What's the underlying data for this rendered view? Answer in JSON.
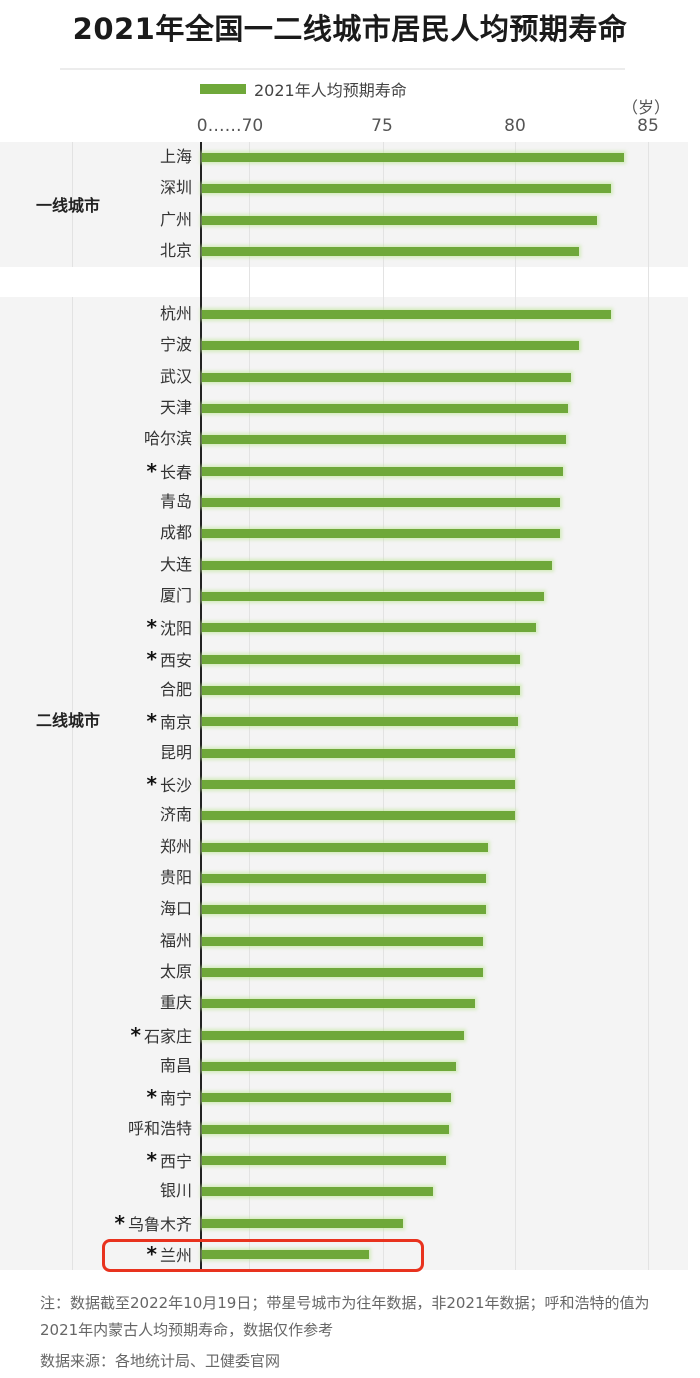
{
  "title": "2021年全国一二线城市居民人均预期寿命",
  "legend": {
    "label": "2021年人均预期寿命",
    "color": "#6fa83a"
  },
  "unit": "（岁）",
  "axis": {
    "ticks": [
      "0……70",
      "75",
      "80",
      "85"
    ]
  },
  "tiers": [
    {
      "label": "一线城市"
    },
    {
      "label": "二线城市"
    }
  ],
  "footnote": "注：数据截至2022年10月19日；带星号城市为往年数据，非2021年数据；呼和浩特的值为2021年内蒙古人均预期寿命，数据仅作参考",
  "source": "数据来源：各地统计局、卫健委官网",
  "highlight": {
    "city": "兰州",
    "color": "#e8321e"
  },
  "chart_data": {
    "type": "bar",
    "orientation": "horizontal",
    "title": "2021年全国一二线城市居民人均预期寿命",
    "xlabel": "（岁）",
    "ylabel": "",
    "xlim": [
      70,
      85
    ],
    "axis_break": "0……70",
    "x_ticks": [
      70,
      75,
      80,
      85
    ],
    "grid": true,
    "legend": [
      "2021年人均预期寿命"
    ],
    "legend_position": "top",
    "groups": [
      {
        "name": "一线城市",
        "categories": [
          "上海",
          "深圳",
          "广州",
          "北京"
        ],
        "starred": [
          false,
          false,
          false,
          false
        ],
        "values": [
          84.1,
          83.6,
          83.1,
          82.4
        ]
      },
      {
        "name": "二线城市",
        "categories": [
          "杭州",
          "宁波",
          "武汉",
          "天津",
          "哈尔滨",
          "长春",
          "青岛",
          "成都",
          "大连",
          "厦门",
          "沈阳",
          "西安",
          "合肥",
          "南京",
          "昆明",
          "长沙",
          "济南",
          "郑州",
          "贵阳",
          "海口",
          "福州",
          "太原",
          "重庆",
          "石家庄",
          "南昌",
          "南宁",
          "呼和浩特",
          "西宁",
          "银川",
          "乌鲁木齐",
          "兰州"
        ],
        "starred": [
          false,
          false,
          false,
          false,
          false,
          true,
          false,
          false,
          false,
          false,
          true,
          true,
          false,
          true,
          false,
          true,
          false,
          false,
          false,
          false,
          false,
          false,
          false,
          true,
          false,
          true,
          false,
          true,
          false,
          true,
          true
        ],
        "values": [
          83.6,
          82.4,
          82.1,
          82.0,
          81.9,
          81.8,
          81.7,
          81.7,
          81.4,
          81.1,
          80.8,
          80.2,
          80.2,
          80.1,
          80.0,
          80.0,
          80.0,
          79.0,
          78.9,
          78.9,
          78.8,
          78.8,
          78.5,
          78.1,
          77.8,
          77.6,
          77.5,
          77.4,
          76.9,
          75.8,
          74.5
        ]
      }
    ]
  }
}
